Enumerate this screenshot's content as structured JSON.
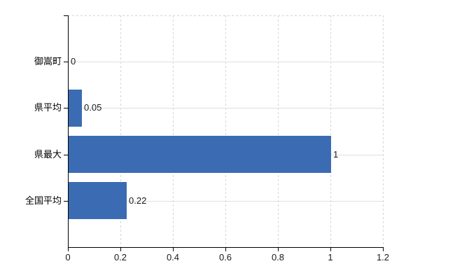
{
  "chart_data": {
    "type": "bar",
    "orientation": "horizontal",
    "title": "",
    "xlabel": "",
    "ylabel": "",
    "categories": [
      "御嵩町",
      "県平均",
      "県最大",
      "全国平均"
    ],
    "values": [
      0,
      0.05,
      1,
      0.22
    ],
    "value_labels": [
      "0",
      "0.05",
      "1",
      "0.22"
    ],
    "x_ticks": [
      0,
      0.2,
      0.4,
      0.6,
      0.8,
      1,
      1.2
    ],
    "x_tick_labels": [
      "0",
      "0.2",
      "0.4",
      "0.6",
      "0.8",
      "1",
      "1.2"
    ],
    "xlim": [
      0,
      1.2
    ],
    "grid": true,
    "legend": false,
    "colors": {
      "bar": "#3b6bb2",
      "axis": "#000000",
      "gridline_vertical": "#d5d5d5",
      "gridline_horizontal": "#dce2dc",
      "text": "#1a1a1a",
      "background": "#ffffff"
    }
  }
}
